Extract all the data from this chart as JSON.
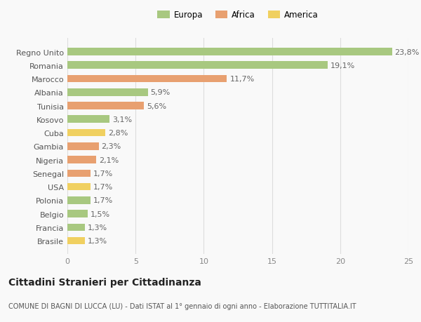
{
  "categories": [
    "Brasile",
    "Francia",
    "Belgio",
    "Polonia",
    "USA",
    "Senegal",
    "Nigeria",
    "Gambia",
    "Cuba",
    "Kosovo",
    "Tunisia",
    "Albania",
    "Marocco",
    "Romania",
    "Regno Unito"
  ],
  "values": [
    1.3,
    1.3,
    1.5,
    1.7,
    1.7,
    1.7,
    2.1,
    2.3,
    2.8,
    3.1,
    5.6,
    5.9,
    11.7,
    19.1,
    23.8
  ],
  "colors": [
    "#f0d060",
    "#a8c880",
    "#a8c880",
    "#a8c880",
    "#f0d060",
    "#e8a070",
    "#e8a070",
    "#e8a070",
    "#f0d060",
    "#a8c880",
    "#e8a070",
    "#a8c880",
    "#e8a070",
    "#a8c880",
    "#a8c880"
  ],
  "labels": [
    "1,3%",
    "1,3%",
    "1,5%",
    "1,7%",
    "1,7%",
    "1,7%",
    "2,1%",
    "2,3%",
    "2,8%",
    "3,1%",
    "5,6%",
    "5,9%",
    "11,7%",
    "19,1%",
    "23,8%"
  ],
  "legend": [
    {
      "label": "Europa",
      "color": "#a8c880"
    },
    {
      "label": "Africa",
      "color": "#e8a070"
    },
    {
      "label": "America",
      "color": "#f0d060"
    }
  ],
  "title": "Cittadini Stranieri per Cittadinanza",
  "subtitle": "COMUNE DI BAGNI DI LUCCA (LU) - Dati ISTAT al 1° gennaio di ogni anno - Elaborazione TUTTITALIA.IT",
  "xlim": [
    0,
    25
  ],
  "xticks": [
    0,
    5,
    10,
    15,
    20,
    25
  ],
  "background_color": "#f9f9f9",
  "grid_color": "#dddddd",
  "bar_height": 0.55,
  "title_fontsize": 10,
  "subtitle_fontsize": 7,
  "tick_fontsize": 8,
  "label_fontsize": 8,
  "legend_fontsize": 8.5
}
